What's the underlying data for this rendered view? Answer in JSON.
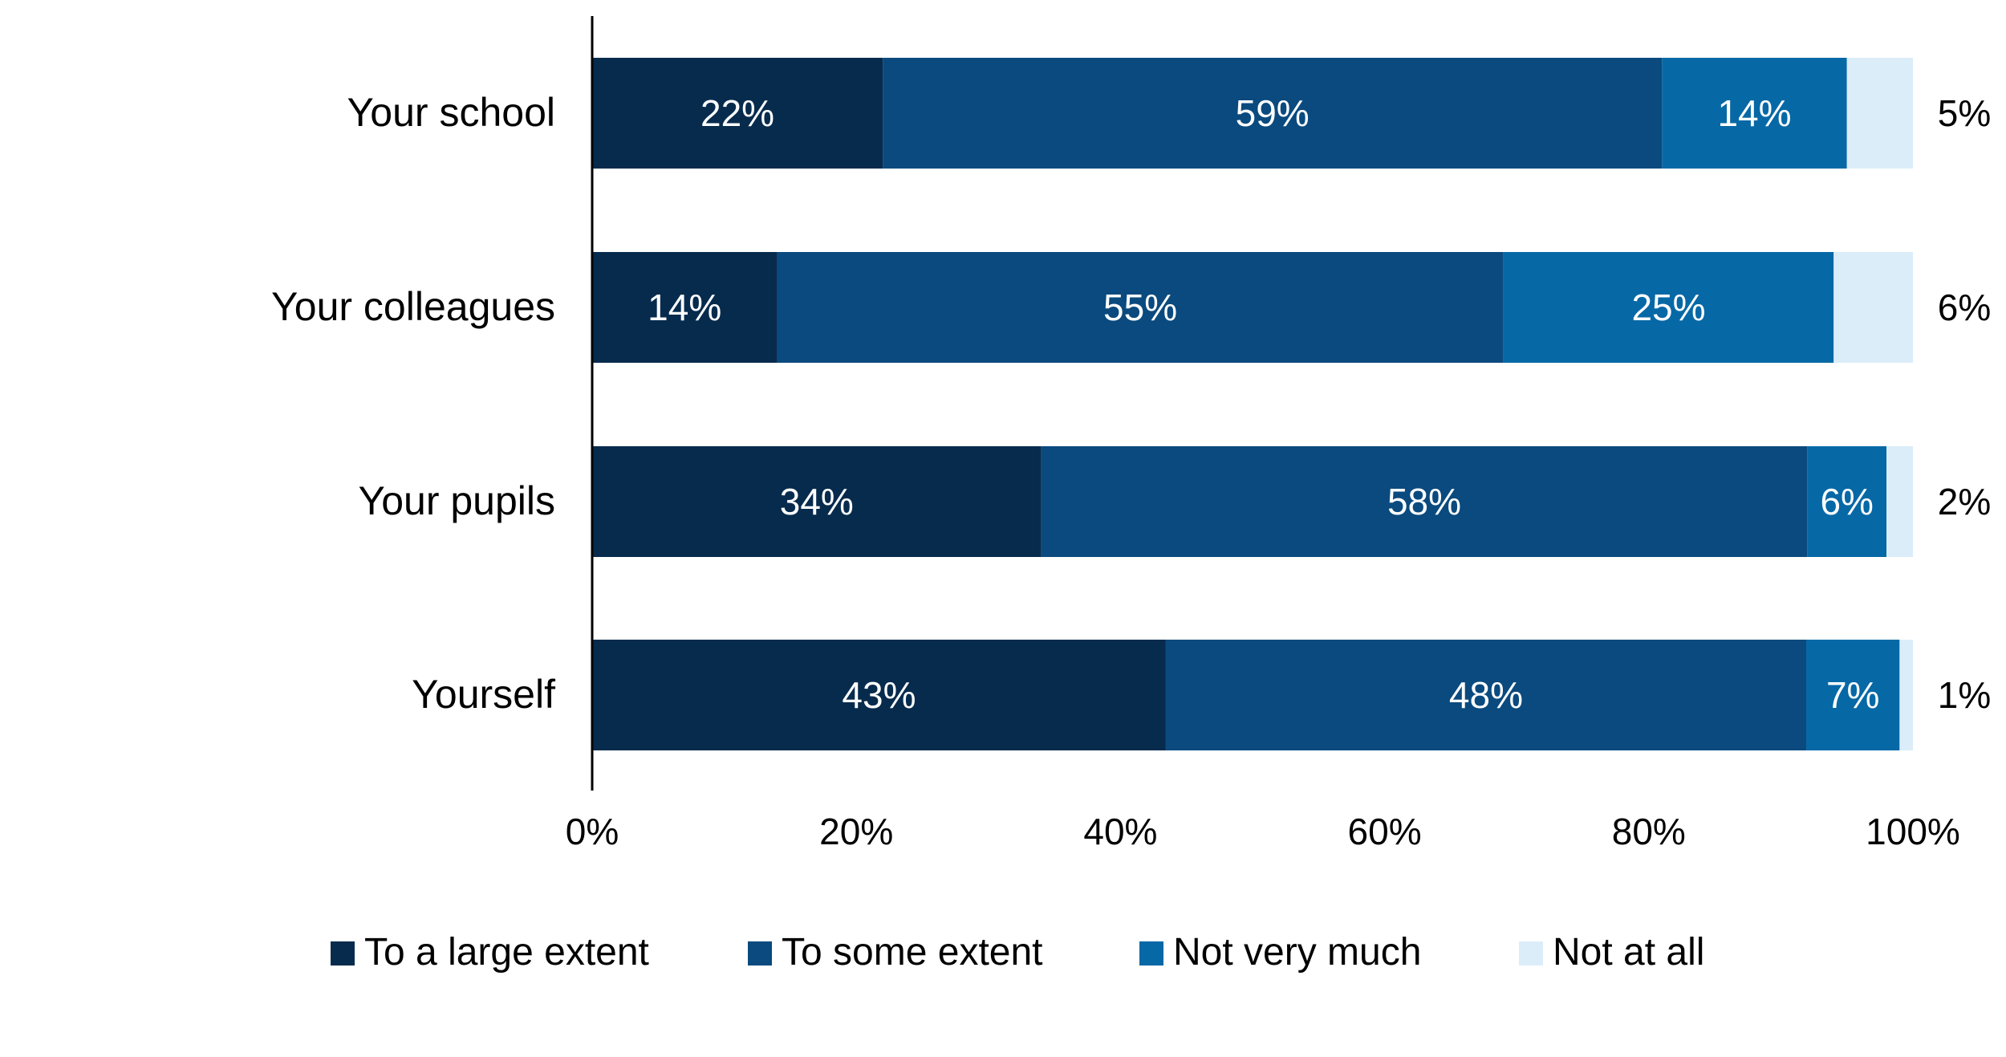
{
  "chart_data": {
    "type": "bar",
    "orientation": "horizontal",
    "stacked": true,
    "categories": [
      "Your school",
      "Your colleagues",
      "Your pupils",
      "Yourself"
    ],
    "series": [
      {
        "name": "To a large extent",
        "color": "#072b4d",
        "values": [
          22,
          14,
          34,
          43
        ],
        "labels": [
          "22%",
          "14%",
          "34%",
          "43%"
        ]
      },
      {
        "name": "To some extent",
        "color": "#0a4a7e",
        "values": [
          59,
          55,
          58,
          48
        ],
        "labels": [
          "59%",
          "55%",
          "58%",
          "48%"
        ]
      },
      {
        "name": "Not very much",
        "color": "#0768a6",
        "values": [
          14,
          25,
          6,
          7
        ],
        "labels": [
          "14%",
          "25%",
          "6%",
          "7%"
        ]
      },
      {
        "name": "Not at all",
        "color": "#dbedf9",
        "values": [
          5,
          6,
          2,
          1
        ],
        "labels": [
          "5%",
          "6%",
          "2%",
          "1%"
        ]
      }
    ],
    "xlim": [
      0,
      100
    ],
    "xticks": [
      "0%",
      "20%",
      "40%",
      "60%",
      "80%",
      "100%"
    ],
    "xlabel": "",
    "ylabel": "",
    "title": "",
    "grid": false,
    "legend_position": "bottom"
  }
}
